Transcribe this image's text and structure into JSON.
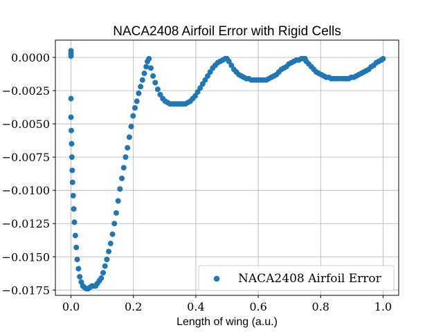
{
  "chart_data": {
    "type": "scatter",
    "title": "NACA2408 Airfoil Error with Rigid Cells",
    "xlabel": "Length of wing (a.u.)",
    "ylabel": "",
    "xlim": [
      -0.05,
      1.05
    ],
    "ylim": [
      -0.0179,
      0.0013
    ],
    "xticks": [
      0.0,
      0.2,
      0.4,
      0.6,
      0.8,
      1.0
    ],
    "xtick_labels": [
      "0.0",
      "0.2",
      "0.4",
      "0.6",
      "0.8",
      "1.0"
    ],
    "yticks": [
      0.0,
      -0.0025,
      -0.005,
      -0.0075,
      -0.01,
      -0.0125,
      -0.015,
      -0.0175
    ],
    "ytick_labels": [
      "0.0000",
      "−0.0025",
      "−0.0050",
      "−0.0075",
      "−0.0100",
      "−0.0125",
      "−0.0150",
      "−0.0175"
    ],
    "grid": true,
    "legend_position": "lower-right",
    "series": [
      {
        "name": "NACA2408 Airfoil Error",
        "color": "#1f77b4",
        "x": [
          0.0,
          0.0,
          0.0,
          0.0,
          0.0,
          0.001,
          0.002,
          0.003,
          0.004,
          0.005,
          0.007,
          0.009,
          0.011,
          0.014,
          0.017,
          0.02,
          0.024,
          0.028,
          0.033,
          0.038,
          0.043,
          0.049,
          0.055,
          0.061,
          0.067,
          0.073,
          0.079,
          0.085,
          0.091,
          0.097,
          0.103,
          0.109,
          0.115,
          0.121,
          0.127,
          0.133,
          0.139,
          0.145,
          0.151,
          0.157,
          0.163,
          0.169,
          0.175,
          0.181,
          0.187,
          0.193,
          0.199,
          0.205,
          0.211,
          0.217,
          0.223,
          0.229,
          0.235,
          0.241,
          0.245,
          0.25,
          0.256,
          0.263,
          0.27,
          0.278,
          0.286,
          0.294,
          0.302,
          0.31,
          0.318,
          0.326,
          0.334,
          0.342,
          0.35,
          0.358,
          0.366,
          0.374,
          0.382,
          0.39,
          0.398,
          0.406,
          0.414,
          0.422,
          0.43,
          0.438,
          0.446,
          0.454,
          0.462,
          0.47,
          0.478,
          0.486,
          0.494,
          0.5,
          0.506,
          0.514,
          0.522,
          0.53,
          0.538,
          0.546,
          0.554,
          0.562,
          0.57,
          0.578,
          0.586,
          0.594,
          0.602,
          0.61,
          0.618,
          0.626,
          0.634,
          0.642,
          0.65,
          0.658,
          0.666,
          0.674,
          0.682,
          0.69,
          0.698,
          0.706,
          0.714,
          0.722,
          0.73,
          0.738,
          0.746,
          0.75,
          0.754,
          0.762,
          0.77,
          0.778,
          0.786,
          0.794,
          0.802,
          0.81,
          0.818,
          0.826,
          0.834,
          0.842,
          0.85,
          0.858,
          0.866,
          0.874,
          0.882,
          0.89,
          0.898,
          0.906,
          0.914,
          0.922,
          0.93,
          0.938,
          0.946,
          0.954,
          0.962,
          0.97,
          0.978,
          0.986,
          0.994,
          1.0
        ],
        "y": [
          0.0005,
          0.0003,
          0.0001,
          -0.0031,
          -0.0045,
          -0.0055,
          -0.0065,
          -0.0075,
          -0.0085,
          -0.0094,
          -0.0104,
          -0.0114,
          -0.0124,
          -0.0134,
          -0.0143,
          -0.0152,
          -0.0159,
          -0.0165,
          -0.0169,
          -0.0172,
          -0.0173,
          -0.0174,
          -0.0174,
          -0.0173,
          -0.0172,
          -0.0172,
          -0.0172,
          -0.017,
          -0.0168,
          -0.0166,
          -0.0162,
          -0.0157,
          -0.0152,
          -0.0146,
          -0.014,
          -0.0133,
          -0.0125,
          -0.0117,
          -0.0108,
          -0.0099,
          -0.0091,
          -0.0083,
          -0.0075,
          -0.0068,
          -0.006,
          -0.0052,
          -0.0044,
          -0.0038,
          -0.0033,
          -0.0027,
          -0.0022,
          -0.0017,
          -0.0012,
          -0.0007,
          -0.0003,
          -0.0001,
          -0.0008,
          -0.0014,
          -0.0019,
          -0.0024,
          -0.0028,
          -0.0031,
          -0.0033,
          -0.0034,
          -0.0035,
          -0.0035,
          -0.0035,
          -0.0035,
          -0.0035,
          -0.0035,
          -0.0035,
          -0.0034,
          -0.0033,
          -0.0031,
          -0.0029,
          -0.0026,
          -0.0023,
          -0.002,
          -0.0017,
          -0.0014,
          -0.0011,
          -0.0008,
          -0.0006,
          -0.0004,
          -0.0003,
          -0.0002,
          -0.0001,
          -0.0001,
          -0.0003,
          -0.0006,
          -0.0009,
          -0.0011,
          -0.0013,
          -0.0014,
          -0.0015,
          -0.0016,
          -0.0016,
          -0.0017,
          -0.0017,
          -0.0017,
          -0.0017,
          -0.0017,
          -0.0017,
          -0.0017,
          -0.0016,
          -0.0015,
          -0.0014,
          -0.0013,
          -0.0011,
          -0.0009,
          -0.0008,
          -0.0007,
          -0.0005,
          -0.0004,
          -0.0003,
          -0.0002,
          -0.0002,
          -0.0001,
          -0.0001,
          -0.0001,
          -0.0003,
          -0.0005,
          -0.0007,
          -0.0009,
          -0.0011,
          -0.0012,
          -0.0013,
          -0.0014,
          -0.0015,
          -0.0015,
          -0.0016,
          -0.0016,
          -0.0016,
          -0.0016,
          -0.0016,
          -0.0016,
          -0.0016,
          -0.0016,
          -0.0015,
          -0.0015,
          -0.0014,
          -0.0013,
          -0.0012,
          -0.0011,
          -0.001,
          -0.0009,
          -0.0007,
          -0.0006,
          -0.0004,
          -0.0003,
          -0.0002,
          -0.0001
        ]
      }
    ]
  }
}
